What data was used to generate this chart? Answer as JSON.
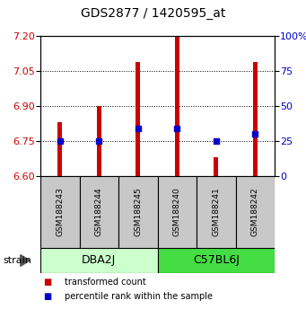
{
  "title": "GDS2877 / 1420595_at",
  "samples": [
    "GSM188243",
    "GSM188244",
    "GSM188245",
    "GSM188240",
    "GSM188241",
    "GSM188242"
  ],
  "transformed_counts": [
    6.83,
    6.9,
    7.09,
    7.2,
    6.68,
    7.09
  ],
  "percentile_ranks": [
    25,
    25,
    34,
    34,
    25,
    30
  ],
  "baseline": 6.6,
  "ylim_left": [
    6.6,
    7.2
  ],
  "ylim_right": [
    0,
    100
  ],
  "yticks_left": [
    6.6,
    6.75,
    6.9,
    7.05,
    7.2
  ],
  "yticks_right": [
    0,
    25,
    50,
    75,
    100
  ],
  "groups": [
    {
      "label": "DBA2J",
      "indices": [
        0,
        1,
        2
      ],
      "color": "#ccffcc"
    },
    {
      "label": "C57BL6J",
      "indices": [
        3,
        4,
        5
      ],
      "color": "#44dd44"
    }
  ],
  "bar_color": "#cc0000",
  "percentile_color": "#0000cc",
  "bar_width": 0.12,
  "bg_color": "#ffffff",
  "sample_box_color": "#c8c8c8",
  "legend_items": [
    {
      "label": "transformed count",
      "color": "#cc0000"
    },
    {
      "label": "percentile rank within the sample",
      "color": "#0000cc"
    }
  ],
  "left_axis_color": "#cc0000",
  "right_axis_color": "#0000cc",
  "right_tick_labels": [
    "0",
    "25",
    "50",
    "75",
    "100%"
  ]
}
